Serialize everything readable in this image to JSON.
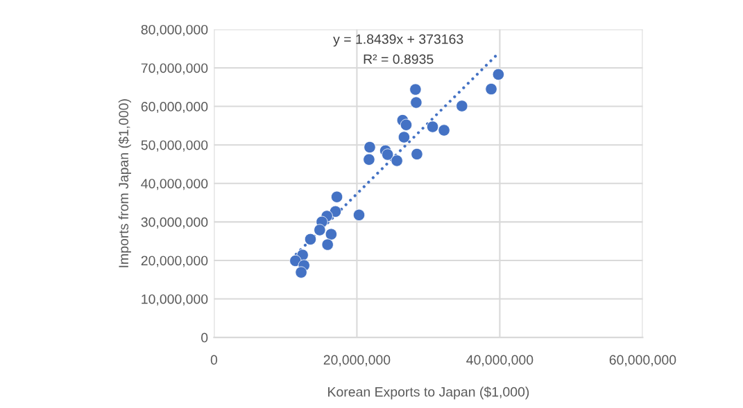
{
  "chart_data": {
    "type": "scatter",
    "xlabel": "Korean Exports to Japan ($1,000)",
    "ylabel": "Imports from Japan ($1,000)",
    "annotations": [
      "y = 1.8439x + 373163",
      "R² = 0.8935"
    ],
    "series": [
      {
        "color": "#4472c4",
        "marker": "circle",
        "x": [
          21800000,
          21700000,
          24000000,
          24300000,
          25600000,
          28400000,
          26400000,
          26900000,
          26600000,
          28200000,
          28300000,
          30600000,
          32200000,
          34700000,
          38800000,
          39800000,
          17200000,
          17000000,
          15800000,
          15100000,
          14800000,
          16400000,
          15900000,
          13500000,
          20300000,
          12400000,
          11400000,
          12600000,
          12200000
        ],
        "values": [
          49400000,
          46200000,
          48500000,
          47500000,
          45900000,
          47600000,
          56400000,
          55200000,
          52000000,
          64400000,
          61000000,
          54700000,
          53800000,
          60100000,
          64500000,
          68300000,
          36500000,
          32700000,
          31500000,
          30000000,
          27900000,
          26800000,
          24100000,
          25500000,
          31800000,
          21400000,
          19900000,
          18700000,
          16900000
        ]
      },
      {
        "type": "line",
        "color": "#4472c4",
        "line_style": "dotted",
        "x": [
          11500000,
          39800000
        ],
        "values": [
          21600000,
          73800000
        ]
      }
    ],
    "xlim": [
      0,
      60000000
    ],
    "ylim": [
      0,
      80000000
    ],
    "xticks": [
      0,
      {
        "value": 20000000,
        "label": "20,000,000"
      },
      {
        "value": 40000000,
        "label": "40,000,000"
      },
      {
        "value": 60000000,
        "label": "60,000,000"
      }
    ],
    "yticks": [
      0,
      {
        "value": 10000000,
        "label": "10,000,000"
      },
      {
        "value": 20000000,
        "label": "20,000,000"
      },
      {
        "value": 30000000,
        "label": "30,000,000"
      },
      {
        "value": 40000000,
        "label": "40,000,000"
      },
      {
        "value": 50000000,
        "label": "50,000,000"
      },
      {
        "value": 60000000,
        "label": "60,000,000"
      },
      {
        "value": 70000000,
        "label": "70,000,000"
      },
      {
        "value": 80000000,
        "label": "80,000,000"
      }
    ],
    "grid": true
  }
}
